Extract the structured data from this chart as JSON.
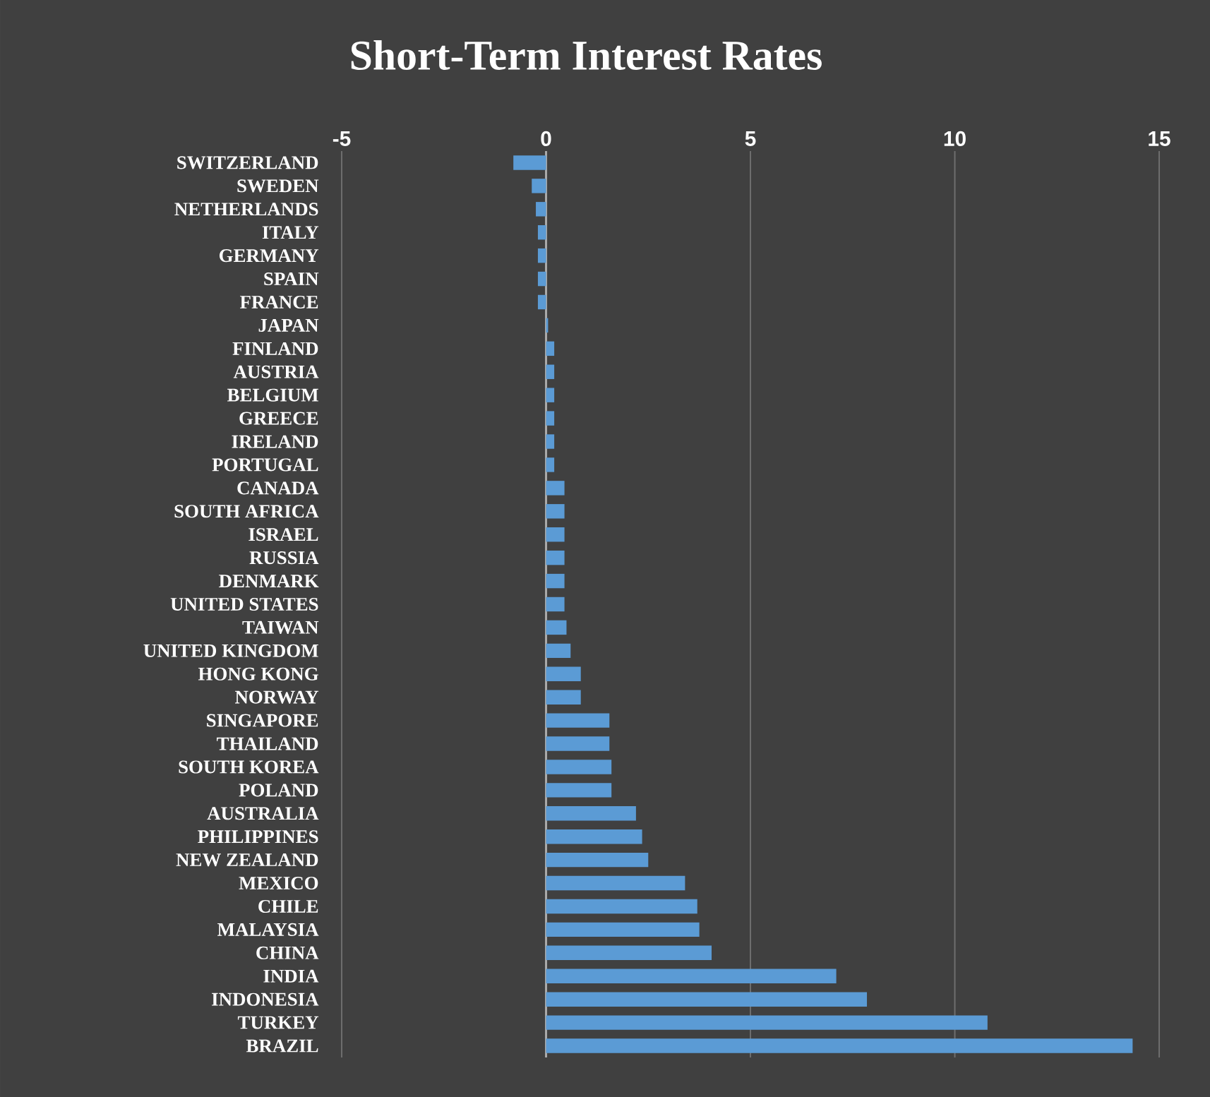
{
  "chart_data": {
    "type": "bar",
    "orientation": "horizontal",
    "title": "Short-Term Interest Rates",
    "categories": [
      "SWITZERLAND",
      "SWEDEN",
      "NETHERLANDS",
      "ITALY",
      "GERMANY",
      "SPAIN",
      "FRANCE",
      "JAPAN",
      "FINLAND",
      "AUSTRIA",
      "BELGIUM",
      "GREECE",
      "IRELAND",
      "PORTUGAL",
      "CANADA",
      "SOUTH AFRICA",
      "ISRAEL",
      "RUSSIA",
      "DENMARK",
      "UNITED STATES",
      "TAIWAN",
      "UNITED KINGDOM",
      "HONG KONG",
      "NORWAY",
      "SINGAPORE",
      "THAILAND",
      "SOUTH KOREA",
      "POLAND",
      "AUSTRALIA",
      "PHILIPPINES",
      "NEW ZEALAND",
      "MEXICO",
      "CHILE",
      "MALAYSIA",
      "CHINA",
      "INDIA",
      "INDONESIA",
      "TURKEY",
      "BRAZIL"
    ],
    "values": [
      -0.8,
      -0.35,
      -0.25,
      -0.2,
      -0.2,
      -0.2,
      -0.2,
      0.05,
      0.2,
      0.2,
      0.2,
      0.2,
      0.2,
      0.2,
      0.45,
      0.45,
      0.45,
      0.45,
      0.45,
      0.45,
      0.5,
      0.6,
      0.85,
      0.85,
      1.55,
      1.55,
      1.6,
      1.6,
      2.2,
      2.35,
      2.5,
      3.4,
      3.7,
      3.75,
      4.05,
      7.1,
      7.85,
      10.8,
      14.35
    ],
    "color": "#5b9bd5",
    "xlim": [
      -5,
      15
    ],
    "xticks": [
      -5,
      0,
      5,
      10,
      15
    ],
    "grid": "x"
  }
}
